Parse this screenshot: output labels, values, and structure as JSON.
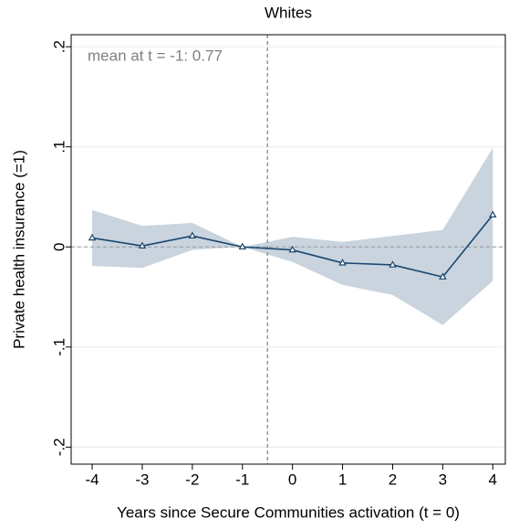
{
  "chart_data": {
    "type": "band-line",
    "title": "Whites",
    "x_label": "Years since Secure Communities activation (t = 0)",
    "y_label": "Private health insurance (=1)",
    "annotation": "mean at t = -1: 0.77",
    "x": [
      -4,
      -3,
      -2,
      -1,
      0,
      1,
      2,
      3,
      4
    ],
    "values": [
      0.009,
      0.001,
      0.011,
      0,
      -0.003,
      -0.016,
      -0.018,
      -0.03,
      0.032
    ],
    "ci_upper": [
      0.037,
      0.021,
      0.024,
      0,
      0.01,
      0.005,
      0.011,
      0.017,
      0.099
    ],
    "ci_lower": [
      -0.019,
      -0.021,
      -0.003,
      0,
      -0.015,
      -0.038,
      -0.048,
      -0.078,
      -0.034
    ],
    "line_color": "#1a476f",
    "band_color": "#b7c5d3",
    "xlim": [
      -4.42,
      4.25
    ],
    "ylim": [
      -0.217,
      0.212
    ],
    "xticks": [
      -4,
      -3,
      -2,
      -1,
      0,
      1,
      2,
      3,
      4
    ],
    "yticks": [
      {
        "value": -0.2,
        "label": "-.2"
      },
      {
        "value": -0.1,
        "label": "-.1"
      },
      0,
      {
        "value": 0.1,
        "label": ".1"
      },
      {
        "value": 0.2,
        "label": ".2"
      }
    ],
    "vline_x": -0.5,
    "hline_y": 0,
    "grid": true
  }
}
